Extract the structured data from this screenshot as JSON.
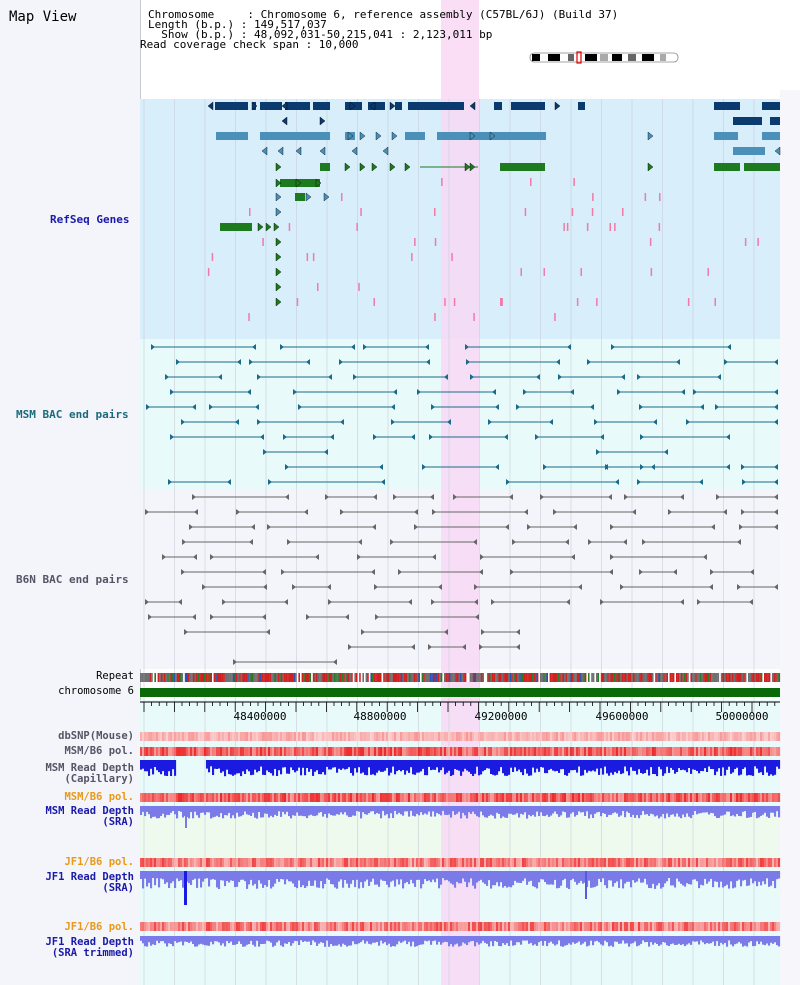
{
  "header": {
    "title": "Map View",
    "chromosome_line": "Chromosome     : Chromosome 6, reference assembly (C57BL/6J) (Build 37)",
    "length_line": "Length (b.p.) : 149,517,037",
    "show_line": "  Show (b.p.) : 48,092,031-50,215,041 : 2,123,011 bp",
    "span_line": "Read coverage check span : 10,000"
  },
  "tracks": {
    "refseq": "RefSeq Genes",
    "msm_bac": "MSM BAC end pairs",
    "b6n_bac": "B6N BAC end pairs",
    "repeat": "Repeat",
    "chromosome": "chromosome 6",
    "dbsnp": "dbSNP(Mouse)",
    "msm_b6_pol1": "MSM/B6 pol.",
    "msm_depth_cap": "MSM Read Depth\n(Capillary)",
    "msm_b6_pol2": "MSM/B6 pol.",
    "msm_depth_sra": "MSM Read Depth\n(SRA)",
    "jf1_pol1": "JF1/B6 pol.",
    "jf1_depth_sra": "JF1 Read Depth\n(SRA)",
    "jf1_pol2": "JF1/B6 pol.",
    "jf1_depth_trim": "JF1 Read Depth\n(SRA trimmed)"
  },
  "axis": {
    "ticks": [
      "48400000",
      "48800000",
      "49200000",
      "49600000",
      "50000000"
    ]
  },
  "colors": {
    "refseq_bg": "#d8eefa",
    "msm_bg": "#e8fafa",
    "b6n_bg": "#f4f4fb",
    "highlight": "#f8d8f4",
    "gene_dark": "#0a3a6e",
    "gene_mid": "#4a90b8",
    "gene_green": "#1e7a1e",
    "msm_line": "#1a6a8a",
    "b6n_line": "#666666",
    "chrom_bar": "#0a6a0a",
    "depth_blue": "#1a1ae0",
    "depth_light": "#7a7ae8",
    "pol_red": "#e84a4a",
    "label_blue": "#1a1aa8",
    "label_teal": "#1a6a7a",
    "label_gray": "#555566",
    "label_orange": "#e89a1a"
  }
}
